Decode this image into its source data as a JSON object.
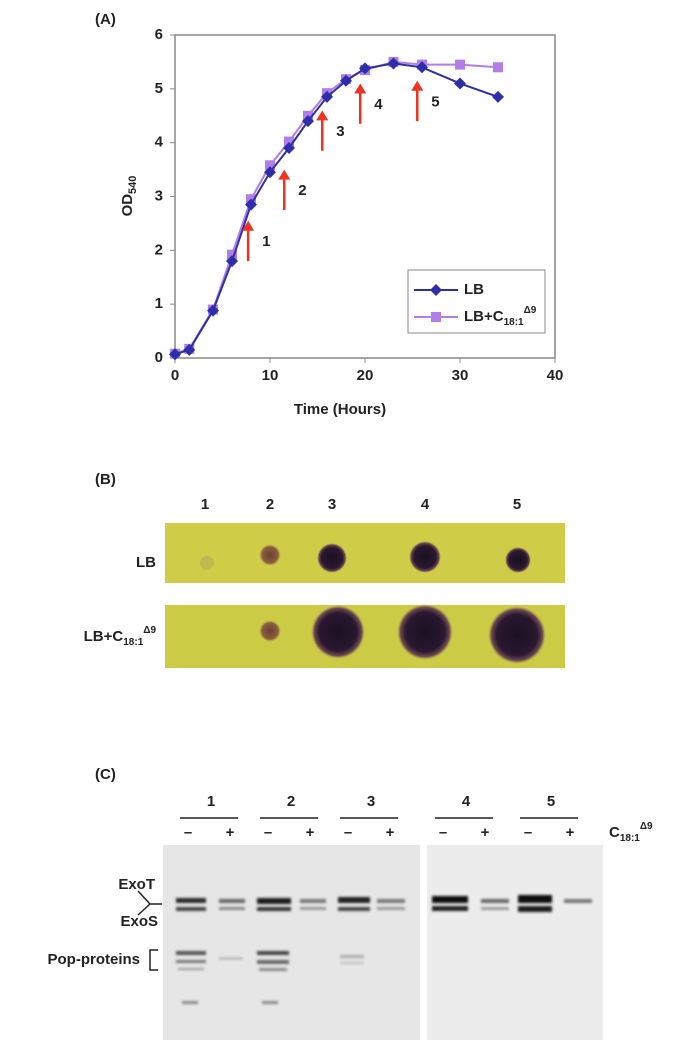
{
  "chart_data": {
    "type": "line",
    "panel_label": "(A)",
    "x_label": "Time (Hours)",
    "y_label": "OD",
    "y_label_subscript": "540",
    "xlim": [
      0,
      40
    ],
    "xticks": [
      0,
      10,
      20,
      30,
      40
    ],
    "ylim": [
      0,
      6
    ],
    "yticks": [
      0,
      1,
      2,
      3,
      4,
      5,
      6
    ],
    "legend": "lower right",
    "series": [
      {
        "name": "LB",
        "color": "#2e2ea8",
        "marker": "diamond",
        "x": [
          0,
          1.5,
          4,
          6,
          8,
          10,
          12,
          14,
          16,
          18,
          20,
          23,
          26,
          30,
          34
        ],
        "values": [
          0.07,
          0.15,
          0.88,
          1.8,
          2.85,
          3.45,
          3.9,
          4.4,
          4.85,
          5.15,
          5.38,
          5.47,
          5.4,
          5.1,
          4.85
        ]
      },
      {
        "name": "LB+C",
        "name_subscript": "18:1",
        "name_superscript": "Δ9",
        "color": "#b07ee6",
        "marker": "square",
        "x": [
          0,
          1.5,
          4,
          6,
          8,
          10,
          12,
          14,
          16,
          18,
          20,
          23,
          26,
          30,
          34
        ],
        "values": [
          0.08,
          0.17,
          0.9,
          1.92,
          2.95,
          3.58,
          4.02,
          4.5,
          4.92,
          5.18,
          5.35,
          5.5,
          5.45,
          5.45,
          5.4
        ]
      }
    ],
    "annotation_color": "#ee3322",
    "annotations": [
      {
        "text": "1",
        "x": 7.7,
        "y": 2.55
      },
      {
        "text": "2",
        "x": 11.5,
        "y": 3.5
      },
      {
        "text": "3",
        "x": 15.5,
        "y": 4.6
      },
      {
        "text": "4",
        "x": 19.5,
        "y": 5.1
      },
      {
        "text": "5",
        "x": 25.5,
        "y": 5.15
      }
    ]
  },
  "panel_b": {
    "label": "(B)",
    "lanes": [
      "1",
      "2",
      "3",
      "4",
      "5"
    ],
    "rows": [
      {
        "label": "LB"
      },
      {
        "label": "LB+C",
        "subscript": "18:1",
        "superscript": "Δ9"
      }
    ]
  },
  "panel_c": {
    "label": "(C)",
    "groups": [
      "1",
      "2",
      "3",
      "4",
      "5"
    ],
    "treatments": [
      "–",
      "+"
    ],
    "treatment_label": "C",
    "treatment_subscript": "18:1",
    "treatment_superscript": "Δ9",
    "bands": [
      "ExoT",
      "ExoS",
      "Pop-proteins"
    ]
  }
}
